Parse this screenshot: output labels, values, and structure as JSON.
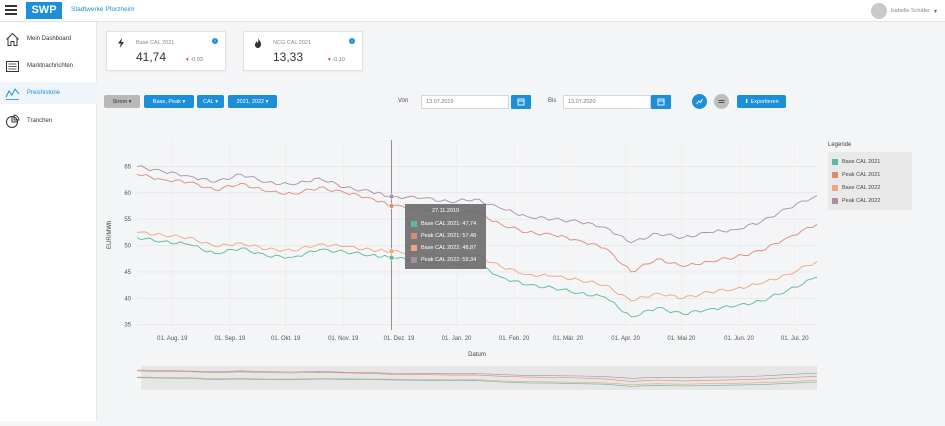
{
  "header": {
    "logo_text": "SWP",
    "brand": "Stadtwerke Pforzheim",
    "user_name": "Isabelle Schäfer"
  },
  "sidebar": {
    "items": [
      {
        "label": "Mein Dashboard",
        "icon": "home-icon"
      },
      {
        "label": "Marktnachrichten",
        "icon": "news-icon"
      },
      {
        "label": "Preishistorie",
        "icon": "chart-line-icon",
        "active": true
      },
      {
        "label": "Tranchen",
        "icon": "pie-chart-icon"
      }
    ]
  },
  "cards": [
    {
      "title": "Base CAL 2021",
      "icon": "bolt-icon",
      "value": "41,74",
      "delta": "-0.93"
    },
    {
      "title": "NCG CAL 2021",
      "icon": "flame-icon",
      "value": "13,33",
      "delta": "-0.10"
    }
  ],
  "filters": {
    "commodity": "Strom",
    "product": "Base, Peak",
    "period": "CAL",
    "years": "2021, 2022",
    "from_label": "Von",
    "from_value": "13.07.2019",
    "to_label": "Bis",
    "to_value": "13.07.2020",
    "export_label": "Exportieren"
  },
  "colors": {
    "accent": "#1d8fd8",
    "base2021": "#5cb99a",
    "peak2021": "#d98c72",
    "base2022": "#f0a47c",
    "peak2022": "#a98fa3"
  },
  "tooltip": {
    "date": "27.11.2019",
    "rows": [
      {
        "label": "Base CAL 2021",
        "value": "47,74"
      },
      {
        "label": "Peak CAL 2021",
        "value": "57,48"
      },
      {
        "label": "Base CAL 2022",
        "value": "48,87"
      },
      {
        "label": "Peak CAL 2022",
        "value": "59,34"
      }
    ]
  },
  "chart_data": {
    "type": "line",
    "xlabel": "Datum",
    "ylabel": "EUR/MWh",
    "ylim": [
      34,
      70
    ],
    "yticks": [
      35,
      40,
      45,
      50,
      55,
      60,
      65
    ],
    "xticks": [
      "01. Aug. 19",
      "01. Sep. 19",
      "01. Okt. 19",
      "01. Nov. 19",
      "01. Dez. 19",
      "01. Jan. 20",
      "01. Feb. 20",
      "01. Mär. 20",
      "01. Apr. 20",
      "01. Mai 20",
      "01. Jun. 20",
      "01. Jul. 20"
    ],
    "x": [
      "2019-07-13",
      "2019-07-27",
      "2019-08-10",
      "2019-08-24",
      "2019-09-07",
      "2019-09-21",
      "2019-10-05",
      "2019-10-19",
      "2019-11-02",
      "2019-11-16",
      "2019-11-27",
      "2019-12-14",
      "2019-12-28",
      "2020-01-11",
      "2020-01-25",
      "2020-02-08",
      "2020-02-22",
      "2020-03-07",
      "2020-03-21",
      "2020-04-04",
      "2020-04-18",
      "2020-05-02",
      "2020-05-16",
      "2020-05-30",
      "2020-06-13",
      "2020-06-27",
      "2020-07-13"
    ],
    "series": [
      {
        "name": "Base CAL 2021",
        "color": "#5cb99a",
        "values": [
          51.5,
          50.8,
          50.2,
          48.5,
          49.5,
          48.0,
          47.8,
          49.2,
          48.8,
          48.2,
          47.7,
          47.0,
          46.2,
          46.8,
          44.0,
          42.5,
          42.0,
          41.0,
          40.2,
          36.5,
          38.2,
          37.0,
          38.0,
          38.5,
          39.5,
          41.5,
          44.0
        ]
      },
      {
        "name": "Peak CAL 2021",
        "color": "#d98c72",
        "values": [
          63.5,
          62.5,
          62.0,
          60.5,
          61.8,
          60.2,
          59.8,
          61.0,
          60.0,
          59.0,
          57.5,
          57.0,
          56.0,
          56.5,
          54.0,
          52.5,
          52.0,
          51.0,
          49.5,
          45.0,
          47.5,
          46.0,
          47.0,
          47.8,
          49.0,
          51.5,
          54.0
        ]
      },
      {
        "name": "Base CAL 2022",
        "color": "#f0a47c",
        "values": [
          52.5,
          52.0,
          51.5,
          49.8,
          50.5,
          49.3,
          49.0,
          50.3,
          49.8,
          49.2,
          48.9,
          48.5,
          47.8,
          48.3,
          46.0,
          44.5,
          44.2,
          43.5,
          42.5,
          39.5,
          41.0,
          40.0,
          41.2,
          41.8,
          42.8,
          44.5,
          47.0
        ]
      },
      {
        "name": "Peak CAL 2022",
        "color": "#a98fa3",
        "values": [
          65.0,
          64.0,
          63.2,
          62.0,
          63.5,
          62.0,
          61.5,
          62.8,
          61.0,
          60.2,
          59.3,
          59.0,
          58.3,
          58.8,
          57.0,
          55.5,
          55.0,
          54.5,
          53.5,
          50.5,
          52.3,
          51.5,
          52.5,
          53.0,
          54.5,
          57.0,
          59.5
        ]
      }
    ],
    "legend_title": "Legende",
    "legend_position": "right",
    "grid": true
  }
}
